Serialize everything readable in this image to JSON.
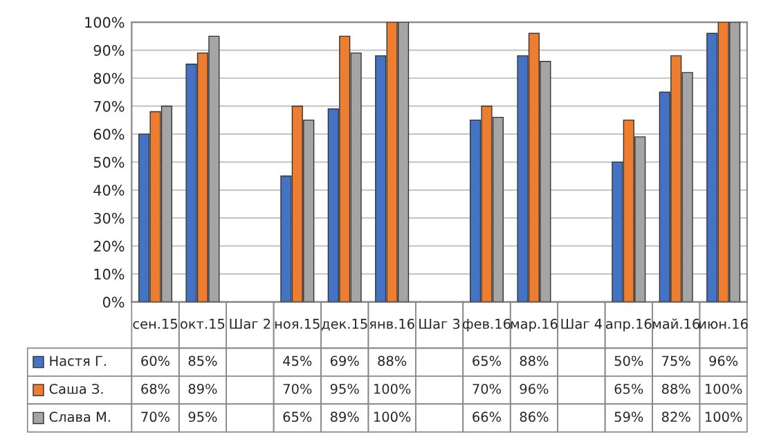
{
  "chart_data": {
    "type": "bar",
    "categories": [
      "сен.15",
      "окт.15",
      "Шаг 2",
      "ноя.15",
      "дек.15",
      "янв.16",
      "Шаг 3",
      "фев.16",
      "мар.16",
      "Шаг 4",
      "апр.16",
      "май.16",
      "июн.16"
    ],
    "series": [
      {
        "name": "Настя Г.",
        "color": "#4472c4",
        "values": [
          60,
          85,
          null,
          45,
          69,
          88,
          null,
          65,
          88,
          null,
          50,
          75,
          96
        ],
        "value_labels": [
          "60%",
          "85%",
          null,
          "45%",
          "69%",
          "88%",
          null,
          "65%",
          "88%",
          null,
          "50%",
          "75%",
          "96%"
        ]
      },
      {
        "name": "Саша З.",
        "color": "#ed7d31",
        "values": [
          68,
          89,
          null,
          70,
          95,
          100,
          null,
          70,
          96,
          null,
          65,
          88,
          100
        ],
        "value_labels": [
          "68%",
          "89%",
          null,
          "70%",
          "95%",
          "100%",
          null,
          "70%",
          "96%",
          null,
          "65%",
          "88%",
          "100%"
        ]
      },
      {
        "name": "Слава М.",
        "color": "#a5a5a5",
        "values": [
          70,
          95,
          null,
          65,
          89,
          100,
          null,
          66,
          86,
          null,
          59,
          82,
          100
        ],
        "value_labels": [
          "70%",
          "95%",
          null,
          "65%",
          "89%",
          "100%",
          null,
          "66%",
          "86%",
          null,
          "59%",
          "82%",
          "100%"
        ]
      }
    ],
    "ylim": [
      0,
      100
    ],
    "yticks": [
      {
        "value": 0,
        "label": "0%"
      },
      {
        "value": 10,
        "label": "10%"
      },
      {
        "value": 20,
        "label": "20%"
      },
      {
        "value": 30,
        "label": "30%"
      },
      {
        "value": 40,
        "label": "40%"
      },
      {
        "value": 50,
        "label": "50%"
      },
      {
        "value": 60,
        "label": "60%"
      },
      {
        "value": 70,
        "label": "70%"
      },
      {
        "value": 80,
        "label": "80%"
      },
      {
        "value": 90,
        "label": "90%"
      },
      {
        "value": 100,
        "label": "100%"
      }
    ],
    "grid": "y",
    "legend": "bottom"
  }
}
